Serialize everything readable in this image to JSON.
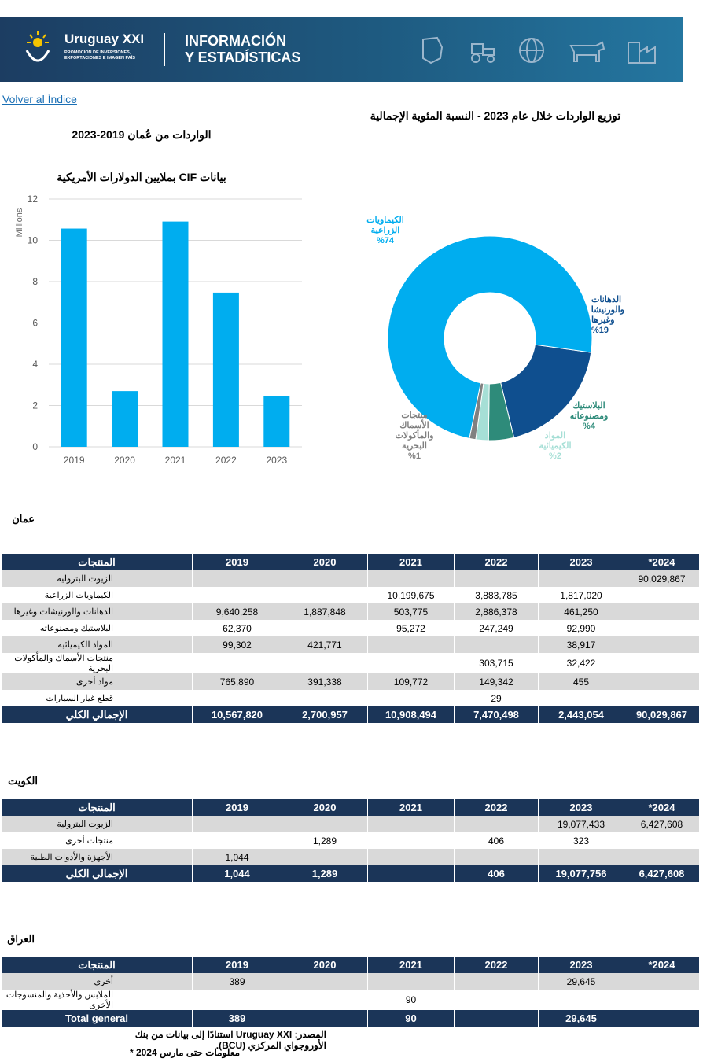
{
  "header": {
    "brand": "Uruguay XXI",
    "brand_sub": "PROMOCIÓN DE INVERSIONES, EXPORTACIONES E IMAGEN PAÍS",
    "title_line1": "INFORMACIÓN",
    "title_line2": "Y ESTADÍSTICAS"
  },
  "back_link": "Volver al Índice",
  "bar_title": "الواردات من عُمان 2019-2023",
  "bar_subtitle": "بيانات CIF بملايين الدولارات الأمريكية",
  "pie_title": "توزيع الواردات خلال عام 2023 - النسبة المئوية الإجمالية",
  "colors": {
    "navy": "#1b3558",
    "light_blue": "#00adef",
    "dark_blue": "#0f4f8f",
    "teal": "#2e8b7a",
    "mint": "#a6dfd6",
    "gray": "#808080"
  },
  "chart_data": [
    {
      "type": "bar",
      "title": "الواردات من عُمان 2019-2023",
      "subtitle": "بيانات CIF بملايين الدولارات الأمريكية",
      "ylabel": "Millions",
      "categories": [
        "2019",
        "2020",
        "2021",
        "2022",
        "2023"
      ],
      "values": [
        10.57,
        2.7,
        10.91,
        7.47,
        2.44
      ],
      "ylim": [
        0,
        12
      ],
      "yticks": [
        "0",
        "2",
        "4",
        "6",
        "8",
        "10",
        "12"
      ],
      "grid": true
    },
    {
      "type": "pie",
      "donut": true,
      "title": "توزيع الواردات خلال عام 2023 - النسبة المئوية الإجمالية",
      "slices": [
        {
          "label": "الكيماويات الزراعية",
          "value": 74,
          "pct": "%74",
          "color": "#00adef"
        },
        {
          "label": "الدهانات والورنيشات وغيرها",
          "value": 19,
          "pct": "%19",
          "color": "#0f4f8f"
        },
        {
          "label": "البلاستيك ومصنوعاته",
          "value": 4,
          "pct": "%4",
          "color": "#2e8b7a"
        },
        {
          "label": "المواد الكيميائية",
          "value": 2,
          "pct": "%2",
          "color": "#a6dfd6"
        },
        {
          "label": "منتجات الأسماك والمأكولات البحرية",
          "value": 1,
          "pct": "%1",
          "color": "#808080"
        }
      ]
    }
  ],
  "pie_labels": {
    "agro": {
      "l1": "الكيماويات",
      "l2": "الزراعية",
      "pct": "%74"
    },
    "paints": {
      "l1": "الدهانات",
      "l2": "والورنيشات",
      "l3": "وغيرها",
      "pct": "%19"
    },
    "plastic": {
      "l1": "البلاستيك",
      "l2": "ومصنوعاته",
      "pct": "%4"
    },
    "chem": {
      "l1": "المواد",
      "l2": "الكيميائية",
      "pct": "%2"
    },
    "fish": {
      "l1": "منتجات",
      "l2": "الأسماك",
      "l3": "والمأكولات",
      "l4": "البحرية",
      "pct": "%1"
    }
  },
  "tables": [
    {
      "country": "عمان",
      "headers": [
        "المنتجات",
        "2019",
        "2020",
        "2021",
        "2022",
        "2023",
        "*2024"
      ],
      "rows": [
        [
          "الزيوت البترولية",
          "",
          "",
          "",
          "",
          "",
          "90,029,867"
        ],
        [
          "الكيماويات الزراعية",
          "",
          "",
          "10,199,675",
          "3,883,785",
          "1,817,020",
          ""
        ],
        [
          "الدهانات والورنيشات وغيرها",
          "9,640,258",
          "1,887,848",
          "503,775",
          "2,886,378",
          "461,250",
          ""
        ],
        [
          "البلاستيك ومصنوعاته",
          "62,370",
          "",
          "95,272",
          "247,249",
          "92,990",
          ""
        ],
        [
          "المواد الكيميائية",
          "99,302",
          "421,771",
          "",
          "",
          "38,917",
          ""
        ],
        [
          "منتجات الأسماك والمأكولات البحرية",
          "",
          "",
          "",
          "303,715",
          "32,422",
          ""
        ],
        [
          "مواد أخرى",
          "765,890",
          "391,338",
          "109,772",
          "149,342",
          "455",
          ""
        ],
        [
          "قطع غيار السيارات",
          "",
          "",
          "",
          "29",
          "",
          ""
        ]
      ],
      "total": [
        "الإجمالي الكلي",
        "10,567,820",
        "2,700,957",
        "10,908,494",
        "7,470,498",
        "2,443,054",
        "90,029,867"
      ]
    },
    {
      "country": "الكويت",
      "headers": [
        "المنتجات",
        "2019",
        "2020",
        "2021",
        "2022",
        "2023",
        "*2024"
      ],
      "rows": [
        [
          "الزيوت البترولية",
          "",
          "",
          "",
          "",
          "19,077,433",
          "6,427,608"
        ],
        [
          "منتجات أخرى",
          "",
          "1,289",
          "",
          "406",
          "323",
          ""
        ],
        [
          "الأجهزة والأدوات الطبية",
          "1,044",
          "",
          "",
          "",
          "",
          ""
        ]
      ],
      "total": [
        "الإجمالي الكلي",
        "1,044",
        "1,289",
        "",
        "406",
        "19,077,756",
        "6,427,608"
      ]
    },
    {
      "country": "العراق",
      "headers": [
        "المنتجات",
        "2019",
        "2020",
        "2021",
        "2022",
        "2023",
        "*2024"
      ],
      "rows": [
        [
          "أخرى",
          "389",
          "",
          "",
          "",
          "29,645",
          ""
        ],
        [
          "الملابس والأحذية والمنسوجات الأخرى",
          "",
          "",
          "90",
          "",
          "",
          ""
        ]
      ],
      "total": [
        "Total general",
        "389",
        "",
        "90",
        "",
        "29,645",
        ""
      ]
    }
  ],
  "footer": {
    "source": "المصدر: Uruguay XXI استنادًا إلى بيانات من بنك الأوروجواي المركزي (BCU).",
    "note": "معلومات حتى مارس 2024 *"
  }
}
